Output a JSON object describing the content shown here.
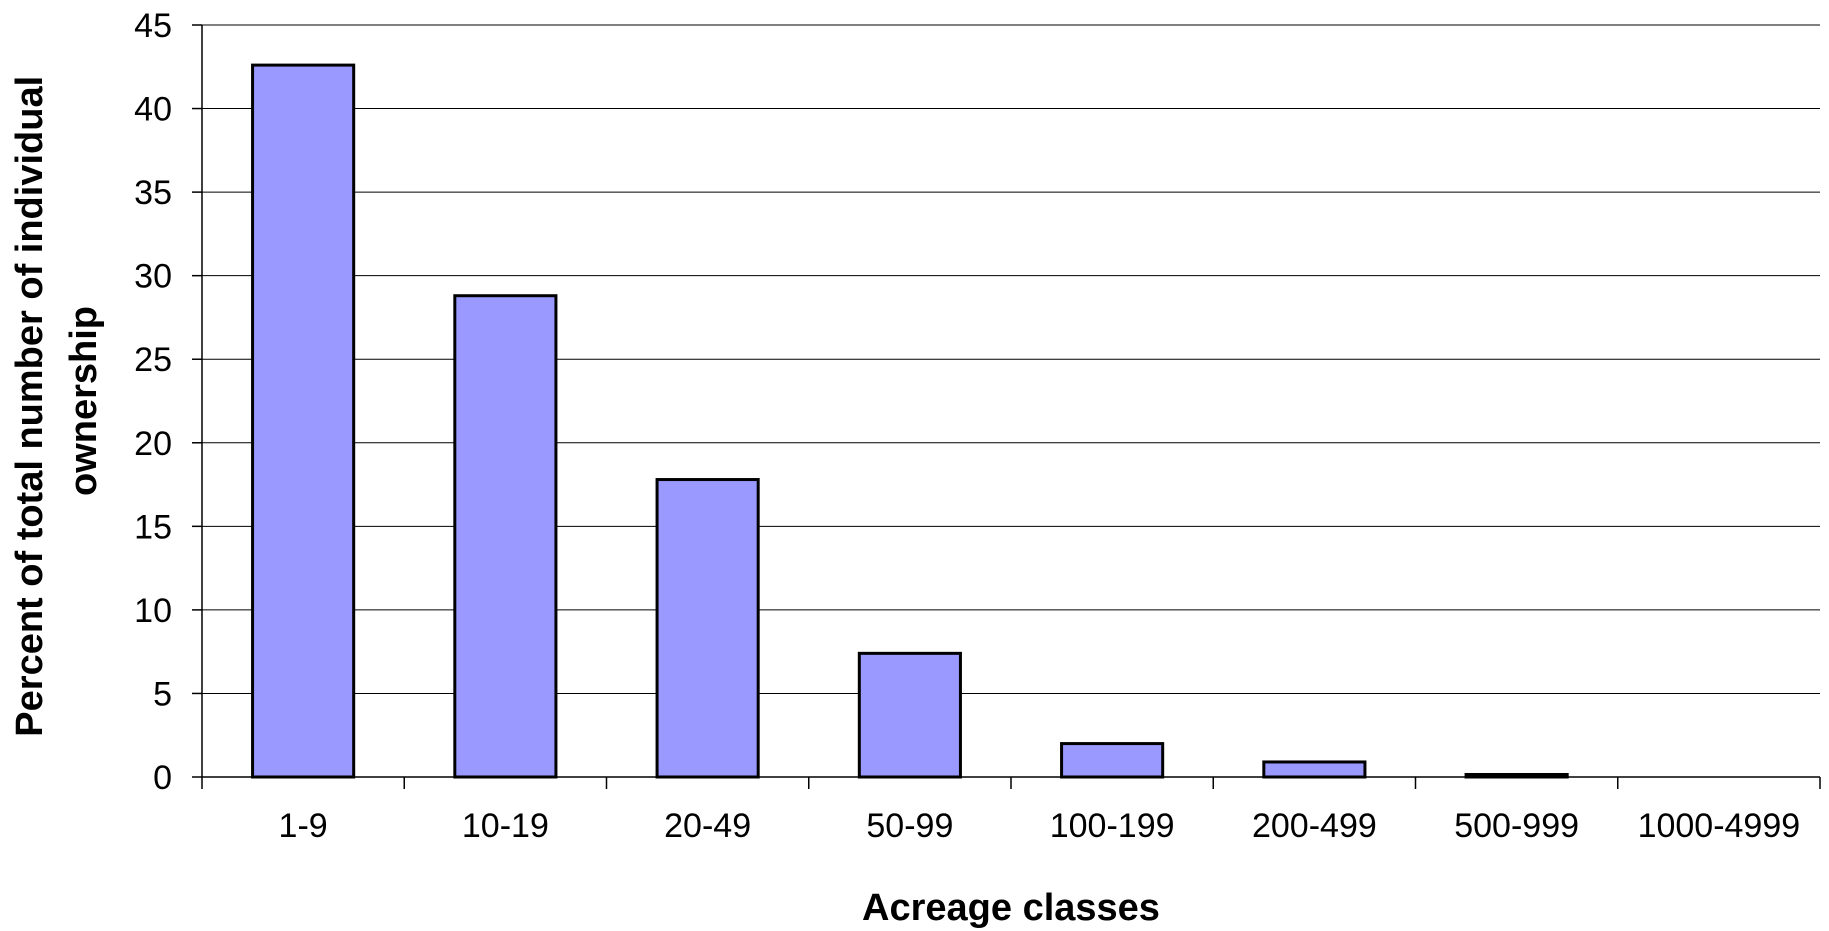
{
  "chart_data": {
    "type": "bar",
    "categories": [
      "1-9",
      "10-19",
      "20-49",
      "50-99",
      "100-199",
      "200-499",
      "500-999",
      "1000-4999"
    ],
    "values": [
      42.6,
      28.8,
      17.8,
      7.4,
      2.0,
      0.9,
      0.15,
      0
    ],
    "xlabel": "Acreage classes",
    "ylabel": [
      "Percent of total number of individual",
      "ownership"
    ],
    "ylim": [
      0,
      45
    ],
    "yticks": [
      0,
      5,
      10,
      15,
      20,
      25,
      30,
      35,
      40,
      45
    ],
    "grid": true,
    "legend": "none",
    "bar_color": "#9999ff"
  }
}
